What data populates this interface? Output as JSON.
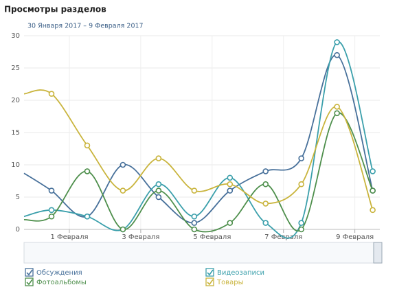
{
  "chart_data": {
    "type": "line",
    "title": "Просмотры разделов",
    "subtitle": "30 Января 2017 – 9 Февраля 2017",
    "x": [
      0.73,
      1.5,
      2.5,
      3.5,
      4.5,
      5.5,
      6.5,
      7.5,
      8.5,
      9.5,
      10.5
    ],
    "xlim": [
      0.73,
      10.7
    ],
    "xticks": [
      {
        "value": 2,
        "label": "1 Февраля"
      },
      {
        "value": 4,
        "label": "3 Февраля"
      },
      {
        "value": 6,
        "label": "5 Февраля"
      },
      {
        "value": 8,
        "label": "7 Февраля"
      },
      {
        "value": 10,
        "label": "9 Февраля"
      }
    ],
    "ylim": [
      0,
      30
    ],
    "yticks": [
      0,
      5,
      10,
      15,
      20,
      25,
      30
    ],
    "grid": true,
    "series": [
      {
        "name": "Обсуждения",
        "color": "#47709a",
        "values": [
          8.7,
          6,
          2,
          10,
          5,
          1,
          6,
          9,
          11,
          27,
          6
        ]
      },
      {
        "name": "Видеозаписи",
        "color": "#3a9fab",
        "values": [
          2,
          3,
          2,
          0,
          7,
          2,
          8,
          1,
          1,
          29,
          9
        ]
      },
      {
        "name": "Фотоальбомы",
        "color": "#4e8f4c",
        "values": [
          1.5,
          2,
          9,
          0,
          6,
          0,
          1,
          7,
          0,
          18,
          6
        ]
      },
      {
        "name": "Товары",
        "color": "#c9b43c",
        "values": [
          21,
          21,
          13,
          6,
          11,
          6,
          7,
          4,
          7,
          19,
          3
        ]
      }
    ]
  }
}
